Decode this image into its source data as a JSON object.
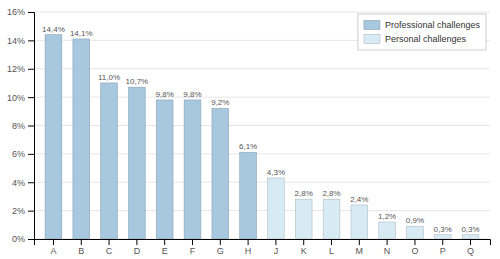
{
  "chart_data": {
    "type": "bar",
    "categories": [
      "A",
      "B",
      "C",
      "D",
      "E",
      "F",
      "G",
      "H",
      "J",
      "K",
      "L",
      "M",
      "N",
      "O",
      "P",
      "Q"
    ],
    "series": [
      {
        "name": "Professional challenges",
        "color": "#a8c8e0",
        "values": [
          14.4,
          14.1,
          11.0,
          10.7,
          9.8,
          9.8,
          9.2,
          6.1,
          null,
          null,
          null,
          null,
          null,
          null,
          null,
          null
        ],
        "value_labels": [
          "14,4%",
          "14,1%",
          "11,0%",
          "10,7%",
          "9,8%",
          "9,8%",
          "9,2%",
          "6,1%",
          null,
          null,
          null,
          null,
          null,
          null,
          null,
          null
        ]
      },
      {
        "name": "Personal challenges",
        "color": "#d8eaf4",
        "values": [
          null,
          null,
          null,
          null,
          null,
          null,
          null,
          null,
          4.3,
          2.8,
          2.8,
          2.4,
          1.2,
          0.9,
          0.3,
          0.3
        ],
        "value_labels": [
          null,
          null,
          null,
          null,
          null,
          null,
          null,
          null,
          "4,3%",
          "2,8%",
          "2,8%",
          "2,4%",
          "1,2%",
          "0,9%",
          "0,3%",
          "0,3%"
        ]
      }
    ],
    "stacked": true,
    "data_labels": true,
    "ylim": [
      0,
      16
    ],
    "yticks": [
      {
        "value": 0,
        "label": "0%"
      },
      {
        "value": 2,
        "label": "2%"
      },
      {
        "value": 4,
        "label": "4%"
      },
      {
        "value": 6,
        "label": "6%"
      },
      {
        "value": 8,
        "label": "8%"
      },
      {
        "value": 10,
        "label": "10%"
      },
      {
        "value": 12,
        "label": "12%"
      },
      {
        "value": 14,
        "label": "14%"
      },
      {
        "value": 16,
        "label": "16%"
      }
    ],
    "grid": true,
    "legend": "upper right"
  }
}
